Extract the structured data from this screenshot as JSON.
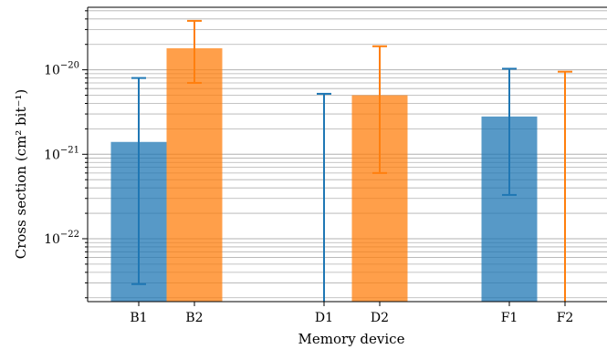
{
  "chart_data": {
    "type": "bar",
    "xlabel": "Memory device",
    "ylabel": "Cross section (cm² bit⁻¹)",
    "yscale": "log",
    "ylim": [
      1.8e-23,
      5.5e-20
    ],
    "grid": "y-major-and-minor",
    "colors": {
      "B": "#1f77b4",
      "F": "#ff7f0e"
    },
    "categories": [
      "B1",
      "B2",
      "D1",
      "D2",
      "F1",
      "F2"
    ],
    "y_ticks": [
      {
        "exp": -22,
        "base": "10",
        "power": "−22"
      },
      {
        "exp": -21,
        "base": "10",
        "power": "−21"
      },
      {
        "exp": -20,
        "base": "10",
        "power": "−20"
      }
    ],
    "bars": [
      {
        "label": "B1",
        "value": 1.4e-21,
        "err_low": 2.9e-23,
        "err_high": 8e-21,
        "color": "#1f77b4"
      },
      {
        "label": "B2",
        "value": 1.8e-20,
        "err_low": 7e-21,
        "err_high": 3.8e-20,
        "color": "#ff7f0e"
      },
      {
        "label": "D1",
        "value": null,
        "err_low": null,
        "err_high": 5.2e-21,
        "color": "#1f77b4"
      },
      {
        "label": "D2",
        "value": 5e-21,
        "err_low": 6e-22,
        "err_high": 1.9e-20,
        "color": "#ff7f0e"
      },
      {
        "label": "F1",
        "value": 2.8e-21,
        "err_low": 3.3e-22,
        "err_high": 1.03e-20,
        "color": "#1f77b4"
      },
      {
        "label": "F2",
        "value": null,
        "err_low": null,
        "err_high": 9.5e-21,
        "color": "#ff7f0e"
      }
    ]
  }
}
